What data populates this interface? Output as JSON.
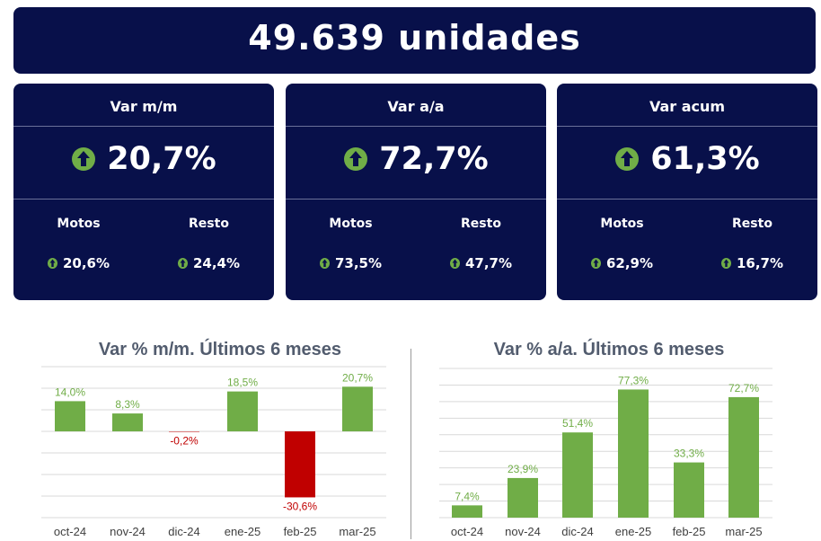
{
  "header": {
    "title": "49.639 unidades"
  },
  "cards": [
    {
      "title": "Var m/m",
      "value": "20,7%",
      "motos_label": "Motos",
      "motos_value": "20,6%",
      "resto_label": "Resto",
      "resto_value": "24,4%"
    },
    {
      "title": "Var a/a",
      "value": "72,7%",
      "motos_label": "Motos",
      "motos_value": "73,5%",
      "resto_label": "Resto",
      "resto_value": "47,7%"
    },
    {
      "title": "Var acum",
      "value": "61,3%",
      "motos_label": "Motos",
      "motos_value": "62,9%",
      "resto_label": "Resto",
      "resto_value": "16,7%"
    }
  ],
  "colors": {
    "navy": "#08104a",
    "positive": "#70ad47",
    "negative": "#c00000",
    "title_gray": "#525c6e"
  },
  "chart_data": [
    {
      "type": "bar",
      "title": "Var % m/m. Últimos 6 meses",
      "categories": [
        "oct-24",
        "nov-24",
        "dic-24",
        "ene-25",
        "feb-25",
        "mar-25"
      ],
      "values": [
        14.0,
        8.3,
        -0.2,
        18.5,
        -30.6,
        20.7
      ],
      "labels": [
        "14,0%",
        "8,3%",
        "-0,2%",
        "18,5%",
        "-30,6%",
        "20,7%"
      ],
      "ylim": [
        -40,
        30
      ],
      "grid": true
    },
    {
      "type": "bar",
      "title": "Var % a/a. Últimos 6 meses",
      "categories": [
        "oct-24",
        "nov-24",
        "dic-24",
        "ene-25",
        "feb-25",
        "mar-25"
      ],
      "values": [
        7.4,
        23.9,
        51.4,
        77.3,
        33.3,
        72.7
      ],
      "labels": [
        "7,4%",
        "23,9%",
        "51,4%",
        "77,3%",
        "33,3%",
        "72,7%"
      ],
      "ylim": [
        0,
        90
      ],
      "grid": true
    }
  ]
}
